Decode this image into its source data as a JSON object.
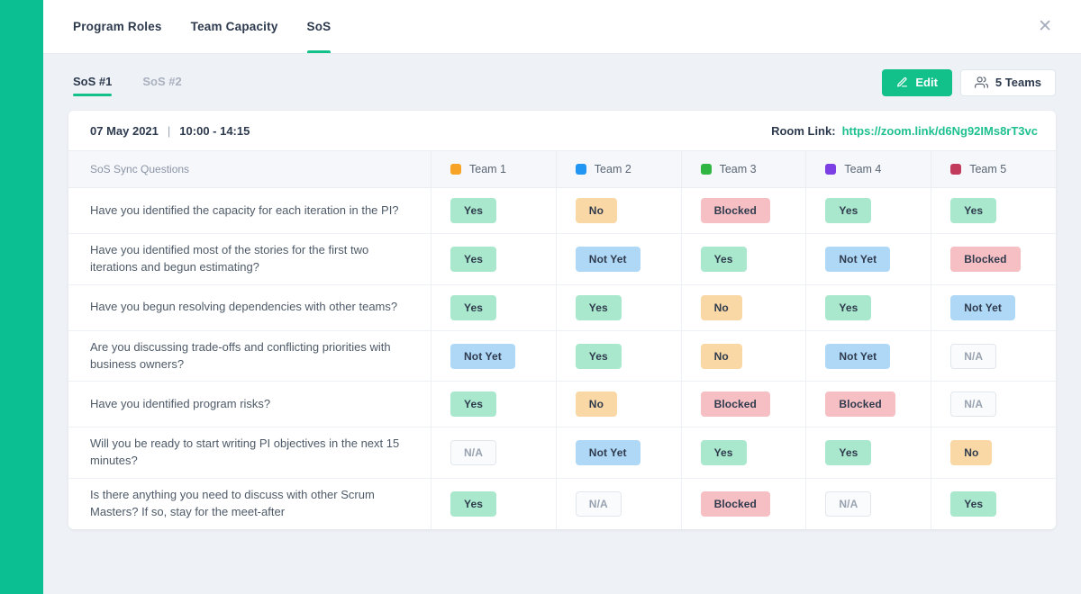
{
  "colors": {
    "accent": "#12C08A",
    "sidebar": "#0CBF92",
    "link": "#1FC08F",
    "text_dark": "#2D3A4E",
    "text_gray": "#8A94A6",
    "bg": "#EEF1F6",
    "border": "#E8ECF1",
    "row_border": "#EDF0F4",
    "thead_bg": "#F5F7FA"
  },
  "topbar": {
    "tabs": [
      {
        "label": "Program Roles",
        "active": false
      },
      {
        "label": "Team Capacity",
        "active": false
      },
      {
        "label": "SoS",
        "active": true
      }
    ],
    "close_icon": "✕"
  },
  "toolbar": {
    "subtabs": [
      {
        "label": "SoS #1",
        "active": true
      },
      {
        "label": "SoS #2",
        "active": false
      }
    ],
    "edit_label": "Edit",
    "teams_label": "5 Teams"
  },
  "meeting": {
    "date": "07 May 2021",
    "divider": "|",
    "time": "10:00 - 14:15",
    "room_link_label": "Room Link:",
    "room_link_url": "https://zoom.link/d6Ng92IMs8rT3vc"
  },
  "table": {
    "question_header": "SoS Sync Questions",
    "teams": [
      {
        "name": "Team 1",
        "color": "#F7A325"
      },
      {
        "name": "Team 2",
        "color": "#2196F3"
      },
      {
        "name": "Team 3",
        "color": "#32B643"
      },
      {
        "name": "Team 4",
        "color": "#7B3FE4"
      },
      {
        "name": "Team 5",
        "color": "#C23A5C"
      }
    ],
    "statuses": {
      "Yes": {
        "bg": "#A9E8CD",
        "text": "#2F3B4D",
        "border": "#A9E8CD"
      },
      "No": {
        "bg": "#FAD8A6",
        "text": "#2F3B4D",
        "border": "#FAD8A6"
      },
      "Blocked": {
        "bg": "#F6BFC4",
        "text": "#2F3B4D",
        "border": "#F6BFC4"
      },
      "Not Yet": {
        "bg": "#AFD8F7",
        "text": "#2F3B4D",
        "border": "#AFD8F7"
      },
      "N/A": {
        "bg": "#FAFBFC",
        "text": "#98A2B0",
        "border": "#E2E7EE"
      }
    },
    "rows": [
      {
        "question": "Have you identified the capacity for each iteration in the PI?",
        "answers": [
          "Yes",
          "No",
          "Blocked",
          "Yes",
          "Yes"
        ]
      },
      {
        "question": "Have you identified most of the stories for the first two iterations and begun estimating?",
        "answers": [
          "Yes",
          "Not Yet",
          "Yes",
          "Not Yet",
          "Blocked"
        ]
      },
      {
        "question": "Have you begun resolving dependencies with other teams?",
        "answers": [
          "Yes",
          "Yes",
          "No",
          "Yes",
          "Not Yet"
        ]
      },
      {
        "question": "Are you discussing trade-offs and conflicting priorities with business owners?",
        "answers": [
          "Not Yet",
          "Yes",
          "No",
          "Not Yet",
          "N/A"
        ]
      },
      {
        "question": "Have you identified program risks?",
        "answers": [
          "Yes",
          "No",
          "Blocked",
          "Blocked",
          "N/A"
        ]
      },
      {
        "question": "Will you be ready to start writing PI objectives in the next 15 minutes?",
        "answers": [
          "N/A",
          "Not Yet",
          "Yes",
          "Yes",
          "No"
        ]
      },
      {
        "question": "Is there anything you need to discuss with other Scrum Masters? If so, stay for the meet-after",
        "answers": [
          "Yes",
          "N/A",
          "Blocked",
          "N/A",
          "Yes"
        ]
      }
    ]
  }
}
